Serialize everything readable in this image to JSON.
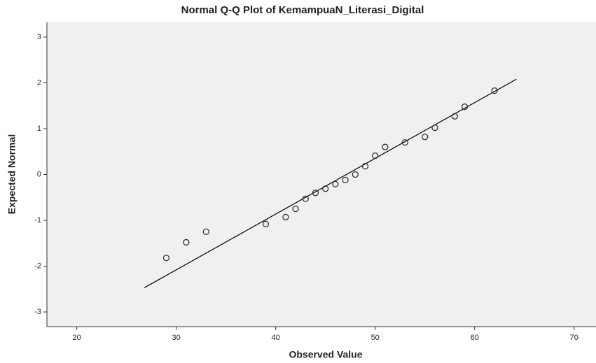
{
  "chart_data": {
    "type": "scatter",
    "title": "Normal Q-Q Plot of KemampuaN_Literasi_Digital",
    "x_label": "Observed Value",
    "y_label": "Expected Normal",
    "x": [
      29,
      31,
      33,
      39,
      41,
      42,
      43,
      44,
      45,
      46,
      47,
      48,
      49,
      50,
      51,
      53,
      55,
      56,
      58,
      59,
      62
    ],
    "y": [
      -1.82,
      -1.48,
      -1.25,
      -1.08,
      -0.93,
      -0.75,
      -0.53,
      -0.4,
      -0.31,
      -0.21,
      -0.12,
      0.0,
      0.18,
      0.41,
      0.6,
      0.7,
      0.82,
      1.02,
      1.27,
      1.48,
      1.83
    ],
    "color": "#333333",
    "reference_line": {
      "x": [
        26.8,
        64.2
      ],
      "y": [
        -2.47,
        2.08
      ],
      "color": "#000000"
    },
    "xlim": [
      17,
      72.2
    ],
    "ylim": [
      -3.32,
      3.32
    ],
    "xticks": [
      20,
      30,
      40,
      50,
      60,
      70
    ],
    "yticks": [
      -3,
      -2,
      -1,
      0,
      1,
      2,
      3
    ],
    "grid": false
  }
}
